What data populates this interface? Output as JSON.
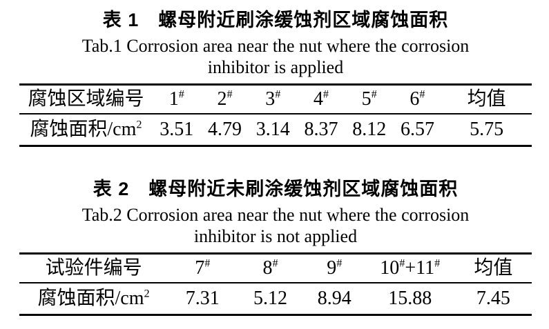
{
  "page": {
    "background_color": "#ffffff",
    "text_color": "#000000"
  },
  "tables": [
    {
      "title_zh": "表 1　螺母附近刷涂缓蚀剂区域腐蚀面积",
      "title_en_line1": "Tab.1 Corrosion area near the nut where the corrosion",
      "title_en_line2": "inhibitor is applied",
      "header_row": [
        "腐蚀区域编号",
        "1{#}",
        "2{#}",
        "3{#}",
        "4{#}",
        "5{#}",
        "6{#}",
        "均值"
      ],
      "data_row": [
        "腐蚀面积/cm{2}",
        "3.51",
        "4.79",
        "3.14",
        "8.37",
        "8.12",
        "6.57",
        "5.75"
      ],
      "col_widths": [
        "26%",
        "9.4%",
        "9.4%",
        "9.4%",
        "9.4%",
        "9.4%",
        "9.4%",
        "17.6%"
      ]
    },
    {
      "title_zh": "表 2　螺母附近未刷涂缓蚀剂区域腐蚀面积",
      "title_en_line1": "Tab.2 Corrosion area near the nut where the corrosion",
      "title_en_line2": "inhibitor is not applied",
      "header_row": [
        "试验件编号",
        "7{#}",
        "8{#}",
        "9{#}",
        "10{#}+11{#}",
        "均值"
      ],
      "data_row": [
        "腐蚀面积/cm{2}",
        "7.31",
        "5.12",
        "8.94",
        "15.88",
        "7.45"
      ],
      "col_widths": [
        "29%",
        "13.5%",
        "13%",
        "12%",
        "17.5%",
        "15%"
      ]
    }
  ]
}
